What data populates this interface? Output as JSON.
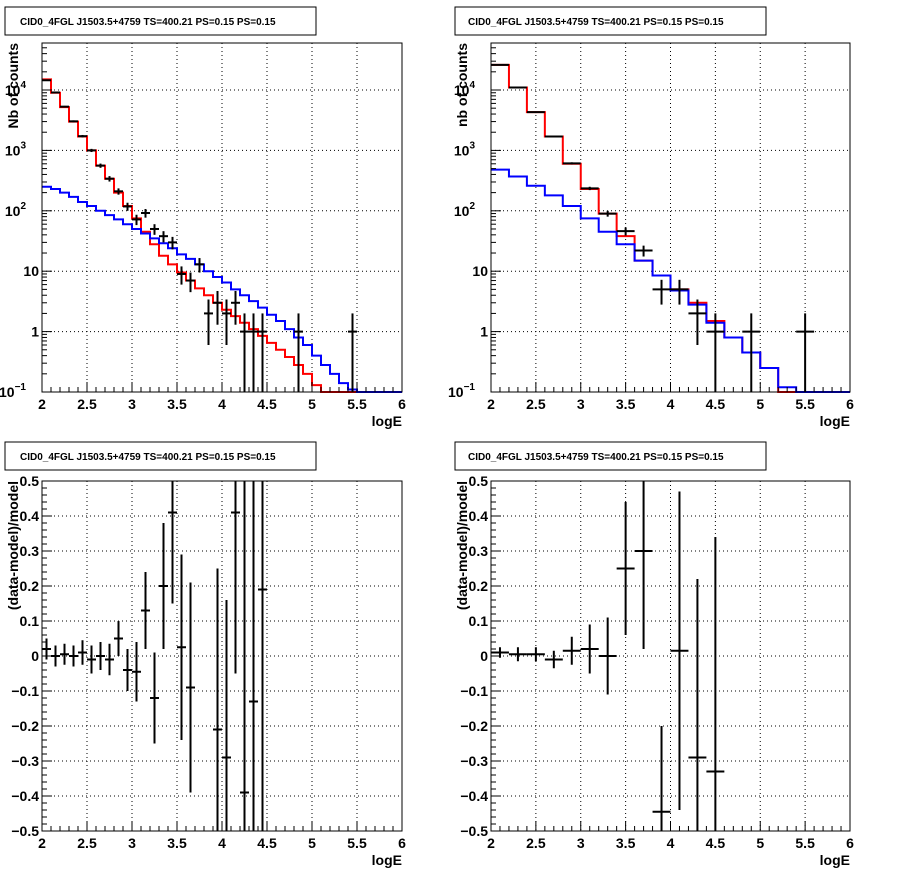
{
  "colors": {
    "total_model": "#ff0000",
    "background_model": "#0000ff",
    "data": "#000000"
  },
  "chart_data": [
    {
      "id": "counts-left",
      "type": "line",
      "title": "CID0_4FGL J1503.5+4759 TS=400.21 PS=0.15 PS=0.15",
      "xlabel": "logE",
      "ylabel": "Nb of counts",
      "yscale": "log",
      "xlim": [
        2,
        6
      ],
      "ylim": [
        0.1,
        60000
      ],
      "x_ticks": [
        "2",
        "2.5",
        "3",
        "3.5",
        "4",
        "4.5",
        "5",
        "5.5",
        "6"
      ],
      "y_ticks": [
        {
          "value": 0.1,
          "base": "10",
          "exp": "−1"
        },
        {
          "value": 1,
          "label": "1"
        },
        {
          "value": 10,
          "label": "10"
        },
        {
          "value": 100,
          "base": "10",
          "exp": "2"
        },
        {
          "value": 1000,
          "base": "10",
          "exp": "3"
        },
        {
          "value": 10000,
          "base": "10",
          "exp": "4"
        }
      ],
      "grid": true,
      "bin_edges": [
        2.0,
        2.1,
        2.2,
        2.3,
        2.4,
        2.5,
        2.6,
        2.7,
        2.8,
        2.9,
        3.0,
        3.1,
        3.2,
        3.3,
        3.4,
        3.5,
        3.6,
        3.7,
        3.8,
        3.9,
        4.0,
        4.1,
        4.2,
        4.3,
        4.4,
        4.5,
        4.6,
        4.7,
        4.8,
        4.9,
        5.0,
        5.1,
        5.2,
        5.3,
        5.4,
        5.5,
        5.6,
        5.7,
        5.8,
        5.9,
        6.0
      ],
      "series": [
        {
          "role": "total_model",
          "values": [
            15000,
            9000,
            5200,
            3000,
            1700,
            1000,
            560,
            340,
            200,
            120,
            75,
            45,
            28,
            18,
            13,
            9.5,
            7,
            5.2,
            4,
            3,
            2.3,
            1.8,
            1.4,
            1.1,
            0.85,
            0.65,
            0.5,
            0.38,
            0.28,
            0.2,
            0.13,
            0.1,
            0.1,
            0.1,
            0.1,
            0.1,
            0.1,
            0.1,
            0.1,
            0.1
          ]
        },
        {
          "role": "background_model",
          "values": [
            250,
            230,
            200,
            170,
            140,
            120,
            100,
            85,
            72,
            60,
            50,
            42,
            35,
            29,
            24,
            19,
            16,
            13,
            10,
            8,
            6.5,
            5,
            4,
            3.2,
            2.5,
            1.9,
            1.5,
            1.1,
            0.8,
            0.6,
            0.4,
            0.28,
            0.2,
            0.14,
            0.11,
            0.1,
            0.1,
            0.1,
            0.1,
            0.1
          ]
        }
      ],
      "points": [
        {
          "x": 2.05,
          "y": 14500,
          "lo": 14260,
          "hi": 14740
        },
        {
          "x": 2.15,
          "y": 9100,
          "lo": 8910,
          "hi": 9290
        },
        {
          "x": 2.25,
          "y": 5300,
          "lo": 5150,
          "hi": 5450
        },
        {
          "x": 2.35,
          "y": 3030,
          "lo": 2920,
          "hi": 3140
        },
        {
          "x": 2.45,
          "y": 1720,
          "lo": 1640,
          "hi": 1800
        },
        {
          "x": 2.55,
          "y": 1000,
          "lo": 940,
          "hi": 1060
        },
        {
          "x": 2.65,
          "y": 560,
          "lo": 515,
          "hi": 605
        },
        {
          "x": 2.75,
          "y": 340,
          "lo": 305,
          "hi": 375
        },
        {
          "x": 2.85,
          "y": 210,
          "lo": 185,
          "hi": 235
        },
        {
          "x": 2.95,
          "y": 118,
          "lo": 100,
          "hi": 136
        },
        {
          "x": 3.05,
          "y": 72,
          "lo": 58,
          "hi": 86
        },
        {
          "x": 3.15,
          "y": 92,
          "lo": 77,
          "hi": 107
        },
        {
          "x": 3.25,
          "y": 50,
          "lo": 40,
          "hi": 60
        },
        {
          "x": 3.35,
          "y": 38,
          "lo": 30,
          "hi": 46
        },
        {
          "x": 3.45,
          "y": 30,
          "lo": 23,
          "hi": 37
        },
        {
          "x": 3.55,
          "y": 9,
          "lo": 6,
          "hi": 12
        },
        {
          "x": 3.65,
          "y": 7,
          "lo": 4.5,
          "hi": 9.5
        },
        {
          "x": 3.75,
          "y": 13,
          "lo": 9.5,
          "hi": 16.5
        },
        {
          "x": 3.85,
          "y": 2,
          "lo": 0.6,
          "hi": 3.4
        },
        {
          "x": 3.95,
          "y": 3,
          "lo": 1.3,
          "hi": 4.7
        },
        {
          "x": 4.05,
          "y": 2,
          "lo": 0.6,
          "hi": 3.4
        },
        {
          "x": 4.15,
          "y": 3,
          "lo": 1.3,
          "hi": 4.7
        },
        {
          "x": 4.25,
          "y": 1,
          "lo": 0.1,
          "hi": 2
        },
        {
          "x": 4.35,
          "y": 1,
          "lo": 0.1,
          "hi": 2
        },
        {
          "x": 4.45,
          "y": 1,
          "lo": 0.1,
          "hi": 2
        },
        {
          "x": 4.85,
          "y": 1,
          "lo": 0.1,
          "hi": 2
        },
        {
          "x": 5.45,
          "y": 1,
          "lo": 0.1,
          "hi": 2
        }
      ],
      "point_half_width": 0.05
    },
    {
      "id": "counts-right",
      "type": "line",
      "title": "CID0_4FGL J1503.5+4759 TS=400.21 PS=0.15 PS=0.15",
      "xlabel": "logE",
      "ylabel": "nb of counts",
      "yscale": "log",
      "xlim": [
        2,
        6
      ],
      "ylim": [
        0.1,
        60000
      ],
      "x_ticks": [
        "2",
        "2.5",
        "3",
        "3.5",
        "4",
        "4.5",
        "5",
        "5.5",
        "6"
      ],
      "y_ticks": [
        {
          "value": 0.1,
          "base": "10",
          "exp": "−1"
        },
        {
          "value": 1,
          "label": "1"
        },
        {
          "value": 10,
          "label": "10"
        },
        {
          "value": 100,
          "base": "10",
          "exp": "2"
        },
        {
          "value": 1000,
          "base": "10",
          "exp": "3"
        },
        {
          "value": 10000,
          "base": "10",
          "exp": "4"
        }
      ],
      "grid": true,
      "bin_edges": [
        2.0,
        2.2,
        2.4,
        2.6,
        2.8,
        3.0,
        3.2,
        3.4,
        3.6,
        3.8,
        4.0,
        4.2,
        4.4,
        4.6,
        4.8,
        5.0,
        5.2,
        5.4,
        5.6,
        5.8,
        6.0
      ],
      "series": [
        {
          "role": "total_model",
          "values": [
            26000,
            11000,
            4300,
            1700,
            600,
            230,
            90,
            38,
            15,
            8.5,
            5,
            3,
            1.5,
            0.8,
            0.45,
            0.25,
            0.1,
            0.1,
            0.1,
            0.1
          ]
        },
        {
          "role": "background_model",
          "values": [
            480,
            370,
            260,
            180,
            120,
            75,
            45,
            28,
            15,
            8.5,
            4.8,
            2.8,
            1.4,
            0.8,
            0.45,
            0.25,
            0.12,
            0.1,
            0.1,
            0.1
          ]
        }
      ],
      "points": [
        {
          "x": 2.1,
          "y": 26000,
          "lo": 25840,
          "hi": 26160
        },
        {
          "x": 2.3,
          "y": 11000,
          "lo": 10895,
          "hi": 11105
        },
        {
          "x": 2.5,
          "y": 4300,
          "lo": 4235,
          "hi": 4365
        },
        {
          "x": 2.7,
          "y": 1700,
          "lo": 1660,
          "hi": 1740
        },
        {
          "x": 2.9,
          "y": 610,
          "lo": 585,
          "hi": 635
        },
        {
          "x": 3.1,
          "y": 235,
          "lo": 220,
          "hi": 250
        },
        {
          "x": 3.3,
          "y": 90,
          "lo": 80,
          "hi": 100
        },
        {
          "x": 3.5,
          "y": 46,
          "lo": 39,
          "hi": 53
        },
        {
          "x": 3.7,
          "y": 22,
          "lo": 17.5,
          "hi": 26.5
        },
        {
          "x": 3.9,
          "y": 5,
          "lo": 2.8,
          "hi": 7.2
        },
        {
          "x": 4.1,
          "y": 5,
          "lo": 2.8,
          "hi": 7.2
        },
        {
          "x": 4.3,
          "y": 2,
          "lo": 0.6,
          "hi": 3.4
        },
        {
          "x": 4.5,
          "y": 1,
          "lo": 0.1,
          "hi": 2
        },
        {
          "x": 4.9,
          "y": 1,
          "lo": 0.1,
          "hi": 2
        },
        {
          "x": 5.5,
          "y": 1,
          "lo": 0.1,
          "hi": 2
        }
      ],
      "point_half_width": 0.1
    },
    {
      "id": "residual-left",
      "type": "scatter",
      "title": "CID0_4FGL J1503.5+4759 TS=400.21 PS=0.15 PS=0.15",
      "xlabel": "logE",
      "ylabel": "(data-model)/model",
      "yscale": "linear",
      "xlim": [
        2,
        6
      ],
      "ylim": [
        -0.5,
        0.5
      ],
      "x_ticks": [
        "2",
        "2.5",
        "3",
        "3.5",
        "4",
        "4.5",
        "5",
        "5.5",
        "6"
      ],
      "y_ticks": [
        {
          "value": -0.5,
          "label": "−0.5"
        },
        {
          "value": -0.4,
          "label": "−0.4"
        },
        {
          "value": -0.3,
          "label": "−0.3"
        },
        {
          "value": -0.2,
          "label": "−0.2"
        },
        {
          "value": -0.1,
          "label": "−0.1"
        },
        {
          "value": 0,
          "label": "0"
        },
        {
          "value": 0.1,
          "label": "0.1"
        },
        {
          "value": 0.2,
          "label": "0.2"
        },
        {
          "value": 0.3,
          "label": "0.3"
        },
        {
          "value": 0.4,
          "label": "0.4"
        },
        {
          "value": 0.5,
          "label": "0.5"
        }
      ],
      "grid": true,
      "points": [
        {
          "x": 2.05,
          "y": 0.02,
          "lo": -0.01,
          "hi": 0.05
        },
        {
          "x": 2.15,
          "y": 0.0,
          "lo": -0.03,
          "hi": 0.03
        },
        {
          "x": 2.25,
          "y": 0.005,
          "lo": -0.025,
          "hi": 0.035
        },
        {
          "x": 2.35,
          "y": 0.0,
          "lo": -0.03,
          "hi": 0.03
        },
        {
          "x": 2.45,
          "y": 0.01,
          "lo": -0.025,
          "hi": 0.045
        },
        {
          "x": 2.55,
          "y": -0.01,
          "lo": -0.05,
          "hi": 0.03
        },
        {
          "x": 2.65,
          "y": 0.0,
          "lo": -0.04,
          "hi": 0.04
        },
        {
          "x": 2.75,
          "y": -0.01,
          "lo": -0.055,
          "hi": 0.035
        },
        {
          "x": 2.85,
          "y": 0.05,
          "lo": 0.0,
          "hi": 0.1
        },
        {
          "x": 2.95,
          "y": -0.04,
          "lo": -0.1,
          "hi": 0.02
        },
        {
          "x": 3.05,
          "y": -0.045,
          "lo": -0.13,
          "hi": 0.04
        },
        {
          "x": 3.15,
          "y": 0.13,
          "lo": 0.02,
          "hi": 0.24
        },
        {
          "x": 3.25,
          "y": -0.12,
          "lo": -0.25,
          "hi": 0.01
        },
        {
          "x": 3.35,
          "y": 0.2,
          "lo": 0.02,
          "hi": 0.38
        },
        {
          "x": 3.45,
          "y": 0.41,
          "lo": 0.15,
          "hi": 0.5
        },
        {
          "x": 3.55,
          "y": 0.025,
          "lo": -0.24,
          "hi": 0.29
        },
        {
          "x": 3.65,
          "y": -0.09,
          "lo": -0.39,
          "hi": 0.21
        },
        {
          "x": 3.95,
          "y": -0.21,
          "lo": -0.5,
          "hi": 0.25
        },
        {
          "x": 4.05,
          "y": -0.29,
          "lo": -0.5,
          "hi": 0.16
        },
        {
          "x": 4.15,
          "y": 0.41,
          "lo": -0.05,
          "hi": 0.5
        },
        {
          "x": 4.25,
          "y": -0.39,
          "lo": -0.5,
          "hi": 0.5
        },
        {
          "x": 4.35,
          "y": -0.13,
          "lo": -0.5,
          "hi": 0.5
        },
        {
          "x": 4.45,
          "y": 0.19,
          "lo": -0.5,
          "hi": 0.5
        }
      ],
      "point_half_width": 0.05
    },
    {
      "id": "residual-right",
      "type": "scatter",
      "title": "CID0_4FGL J1503.5+4759 TS=400.21 PS=0.15 PS=0.15",
      "xlabel": "logE",
      "ylabel": "(data-model)/model",
      "yscale": "linear",
      "xlim": [
        2,
        6
      ],
      "ylim": [
        -0.5,
        0.5
      ],
      "x_ticks": [
        "2",
        "2.5",
        "3",
        "3.5",
        "4",
        "4.5",
        "5",
        "5.5",
        "6"
      ],
      "y_ticks": [
        {
          "value": -0.5,
          "label": "−0.5"
        },
        {
          "value": -0.4,
          "label": "−0.4"
        },
        {
          "value": -0.3,
          "label": "−0.3"
        },
        {
          "value": -0.2,
          "label": "−0.2"
        },
        {
          "value": -0.1,
          "label": "−0.1"
        },
        {
          "value": 0,
          "label": "0"
        },
        {
          "value": 0.1,
          "label": "0.1"
        },
        {
          "value": 0.2,
          "label": "0.2"
        },
        {
          "value": 0.3,
          "label": "0.3"
        },
        {
          "value": 0.4,
          "label": "0.4"
        },
        {
          "value": 0.5,
          "label": "0.5"
        }
      ],
      "grid": true,
      "points": [
        {
          "x": 2.1,
          "y": 0.01,
          "lo": -0.005,
          "hi": 0.025
        },
        {
          "x": 2.3,
          "y": 0.005,
          "lo": -0.015,
          "hi": 0.025
        },
        {
          "x": 2.5,
          "y": 0.005,
          "lo": -0.015,
          "hi": 0.025
        },
        {
          "x": 2.7,
          "y": -0.01,
          "lo": -0.035,
          "hi": 0.015
        },
        {
          "x": 2.9,
          "y": 0.015,
          "lo": -0.025,
          "hi": 0.055
        },
        {
          "x": 3.1,
          "y": 0.02,
          "lo": -0.05,
          "hi": 0.09
        },
        {
          "x": 3.3,
          "y": 0.0,
          "lo": -0.11,
          "hi": 0.11
        },
        {
          "x": 3.5,
          "y": 0.25,
          "lo": 0.06,
          "hi": 0.44
        },
        {
          "x": 3.7,
          "y": 0.3,
          "lo": 0.02,
          "hi": 0.5
        },
        {
          "x": 3.9,
          "y": -0.445,
          "lo": -0.5,
          "hi": -0.2
        },
        {
          "x": 4.1,
          "y": 0.015,
          "lo": -0.44,
          "hi": 0.47
        },
        {
          "x": 4.3,
          "y": -0.29,
          "lo": -0.5,
          "hi": 0.22
        },
        {
          "x": 4.5,
          "y": -0.33,
          "lo": -0.5,
          "hi": 0.34
        }
      ],
      "point_half_width": 0.1
    }
  ]
}
